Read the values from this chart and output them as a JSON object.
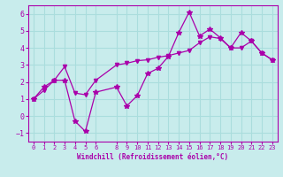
{
  "xlabel": "Windchill (Refroidissement éolien,°C)",
  "bg_color": "#c8ecec",
  "line_color": "#aa00aa",
  "grid_color": "#aadddd",
  "xticks": [
    0,
    1,
    2,
    3,
    4,
    5,
    6,
    8,
    9,
    10,
    11,
    12,
    13,
    14,
    15,
    16,
    17,
    18,
    19,
    20,
    21,
    22,
    23
  ],
  "yticks": [
    -1,
    0,
    1,
    2,
    3,
    4,
    5,
    6
  ],
  "ylim": [
    -1.5,
    6.5
  ],
  "xlim": [
    -0.5,
    23.5
  ],
  "series1_x": [
    0,
    1,
    2,
    3,
    4,
    5,
    6,
    8,
    9,
    10,
    11,
    12,
    13,
    14,
    15,
    16,
    17,
    18,
    19,
    20,
    21,
    22,
    23
  ],
  "series1_y": [
    1.0,
    1.7,
    2.1,
    2.1,
    -0.3,
    -0.9,
    1.4,
    1.7,
    0.6,
    1.2,
    2.5,
    2.8,
    3.5,
    4.9,
    6.1,
    4.7,
    5.1,
    4.6,
    4.0,
    4.9,
    4.4,
    3.7,
    3.3
  ],
  "series2_x": [
    0,
    1,
    2,
    3,
    4,
    5,
    6,
    8,
    9,
    10,
    11,
    12,
    13,
    14,
    15,
    16,
    17,
    18,
    19,
    20,
    21,
    22,
    23
  ],
  "series2_y": [
    1.0,
    1.5,
    2.1,
    2.9,
    1.35,
    1.25,
    2.1,
    3.0,
    3.1,
    3.25,
    3.3,
    3.45,
    3.55,
    3.7,
    3.85,
    4.3,
    4.65,
    4.55,
    4.0,
    4.0,
    4.4,
    3.7,
    3.3
  ]
}
